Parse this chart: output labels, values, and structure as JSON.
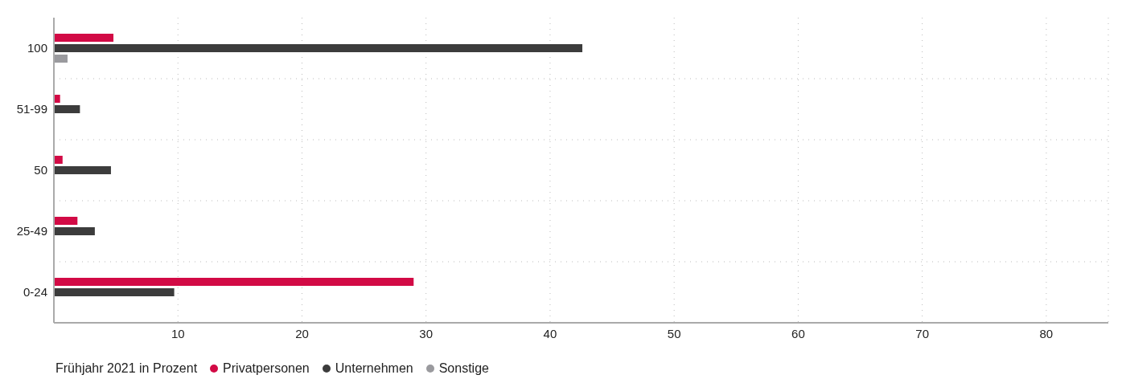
{
  "chart_data": {
    "type": "bar",
    "orientation": "horizontal",
    "legend_title": "Frühjahr 2021 in Prozent",
    "categories": [
      "100",
      "51-99",
      "50",
      "25-49",
      "0-24"
    ],
    "series": [
      {
        "name": "Privatpersonen",
        "color": "#d20a45",
        "values": [
          4.8,
          0.5,
          0.7,
          1.9,
          29.0
        ]
      },
      {
        "name": "Unternehmen",
        "color": "#3c3c3c",
        "values": [
          42.6,
          2.1,
          4.6,
          3.3,
          9.7
        ]
      },
      {
        "name": "Sonstige",
        "color": "#9a9a9e",
        "values": [
          1.1,
          null,
          null,
          null,
          null
        ]
      }
    ],
    "xlim": [
      0,
      85
    ],
    "xticks": [
      10,
      20,
      30,
      40,
      50,
      60,
      70,
      80
    ],
    "grid": true,
    "legend": "bottom"
  }
}
